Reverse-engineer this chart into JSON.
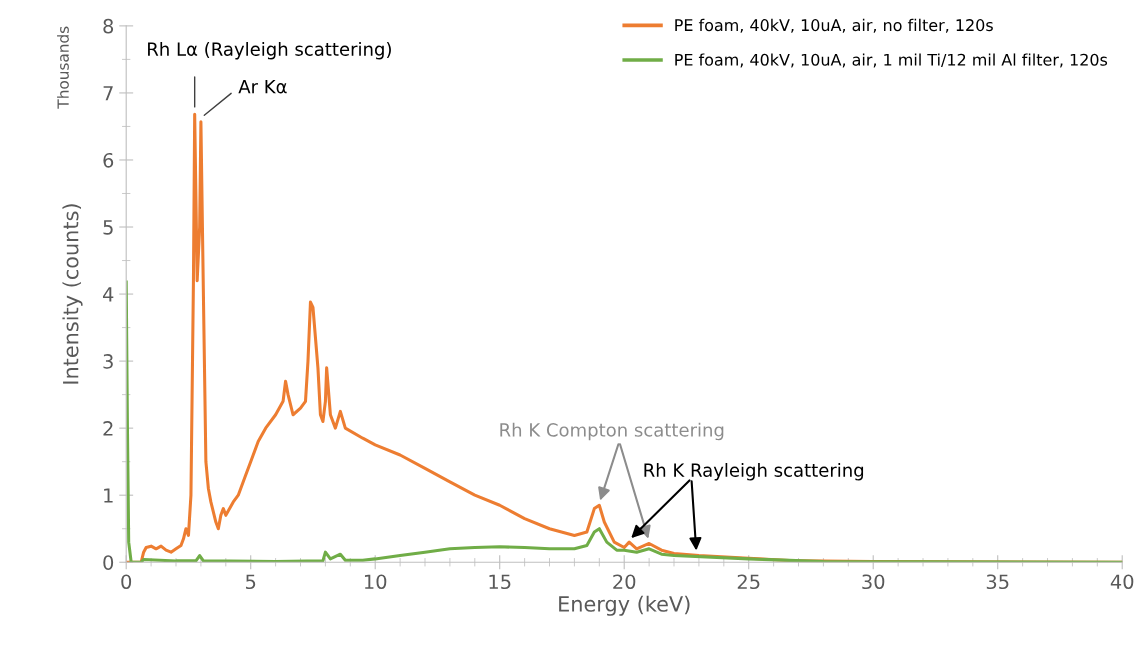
{
  "chart_data": {
    "type": "line",
    "xlabel": "Energy (keV)",
    "ylabel": "Intensity (counts)",
    "xlim": [
      0,
      40
    ],
    "xticks": [
      0,
      5,
      10,
      15,
      20,
      25,
      30,
      35,
      40
    ],
    "ylim": [
      0,
      8
    ],
    "yticks": [
      0,
      1,
      2,
      3,
      4,
      5,
      6,
      7,
      8
    ],
    "grid": false,
    "legend": "top right",
    "marker": "none",
    "line_style": "solid",
    "series": [
      {
        "name": "PE foam, 40kV, 10uA, air, no filter, 120s",
        "color": "#ed7d31",
        "x": [
          0,
          0.6,
          0.7,
          0.8,
          1.0,
          1.2,
          1.4,
          1.6,
          1.8,
          2.0,
          2.2,
          2.3,
          2.4,
          2.5,
          2.6,
          2.7,
          2.75,
          2.85,
          2.95,
          3.0,
          3.1,
          3.2,
          3.3,
          3.4,
          3.6,
          3.7,
          3.8,
          3.9,
          4.0,
          4.3,
          4.5,
          4.8,
          5.0,
          5.3,
          5.6,
          6.0,
          6.3,
          6.4,
          6.5,
          6.7,
          7.0,
          7.2,
          7.3,
          7.4,
          7.5,
          7.7,
          7.8,
          7.9,
          8.0,
          8.05,
          8.2,
          8.4,
          8.6,
          8.8,
          9.5,
          10,
          11,
          12,
          13,
          14,
          15,
          16,
          17,
          18,
          18.5,
          18.8,
          19.0,
          19.2,
          19.6,
          20,
          20.2,
          20.5,
          21,
          21.5,
          22,
          23,
          25,
          27,
          30,
          40
        ],
        "values": [
          0,
          0,
          0.15,
          0.22,
          0.24,
          0.2,
          0.24,
          0.18,
          0.15,
          0.2,
          0.25,
          0.35,
          0.5,
          0.4,
          1.0,
          4.2,
          6.68,
          4.2,
          5.0,
          6.57,
          4.0,
          1.5,
          1.1,
          0.9,
          0.6,
          0.5,
          0.7,
          0.8,
          0.7,
          0.9,
          1.0,
          1.3,
          1.5,
          1.8,
          2.0,
          2.2,
          2.4,
          2.7,
          2.5,
          2.2,
          2.3,
          2.4,
          3.0,
          3.88,
          3.8,
          2.9,
          2.2,
          2.1,
          2.4,
          2.9,
          2.2,
          2.0,
          2.25,
          2.0,
          1.85,
          1.75,
          1.6,
          1.4,
          1.2,
          1.0,
          0.85,
          0.65,
          0.5,
          0.4,
          0.45,
          0.8,
          0.85,
          0.6,
          0.3,
          0.22,
          0.3,
          0.2,
          0.28,
          0.18,
          0.13,
          0.1,
          0.06,
          0.02,
          0.01,
          0
        ]
      },
      {
        "name": "PE foam, 40kV, 10uA, air, 1 mil Ti/12 mil Al filter, 120s",
        "color": "#70ad47",
        "x": [
          0,
          0.05,
          0.1,
          0.2,
          0.6,
          0.7,
          2,
          2.8,
          2.95,
          3.1,
          6,
          7.9,
          8.0,
          8.2,
          8.6,
          8.8,
          9.5,
          10,
          11,
          12,
          13,
          14,
          15,
          16,
          17,
          18,
          18.5,
          18.8,
          19,
          19.3,
          19.7,
          20,
          20.5,
          21,
          21.5,
          22,
          25,
          28,
          40
        ],
        "values": [
          4.18,
          2,
          0.3,
          0,
          0,
          0.04,
          0.02,
          0.02,
          0.1,
          0.02,
          0.01,
          0.02,
          0.15,
          0.05,
          0.12,
          0.03,
          0.03,
          0.05,
          0.1,
          0.15,
          0.2,
          0.22,
          0.23,
          0.22,
          0.2,
          0.2,
          0.25,
          0.45,
          0.5,
          0.3,
          0.18,
          0.18,
          0.15,
          0.2,
          0.12,
          0.1,
          0.05,
          0.01,
          0
        ]
      }
    ],
    "annotations": [
      "Thousands",
      {
        "text": "Rh Lα (Rayleigh scattering)",
        "x": 2.75,
        "y": 6.68
      },
      {
        "text": "Ar Kα",
        "x": 3.0,
        "y": 6.57
      },
      {
        "text": "Rh K Compton scattering",
        "x": 19.0,
        "y": 0.85
      },
      {
        "text": "Rh K Rayleigh scattering",
        "x": 20.2,
        "y": 0.3
      }
    ]
  }
}
